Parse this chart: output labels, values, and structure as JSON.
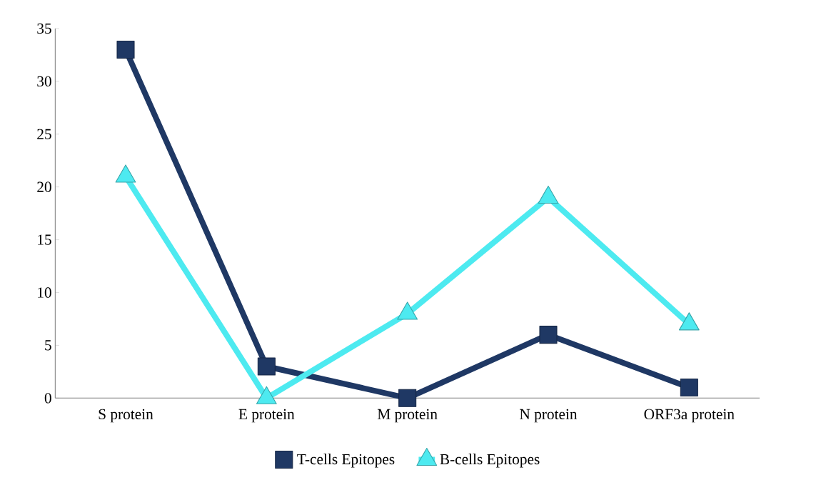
{
  "chart_data": {
    "type": "line",
    "categories": [
      "S protein",
      "E protein",
      "M protein",
      "N protein",
      "ORF3a protein"
    ],
    "series": [
      {
        "name": "T-cells Epitopes",
        "color": "#1f3864",
        "values": [
          33,
          3,
          0,
          6,
          1
        ],
        "marker": "square"
      },
      {
        "name": "B-cells Epitopes",
        "color": "#4deaf0",
        "values": [
          21,
          0,
          8,
          19,
          7
        ],
        "marker": "triangle"
      }
    ],
    "ylim": [
      0,
      35
    ],
    "yticks": [
      0,
      5,
      10,
      15,
      20,
      25,
      30,
      35
    ],
    "grid": false,
    "legend": "bottom"
  }
}
